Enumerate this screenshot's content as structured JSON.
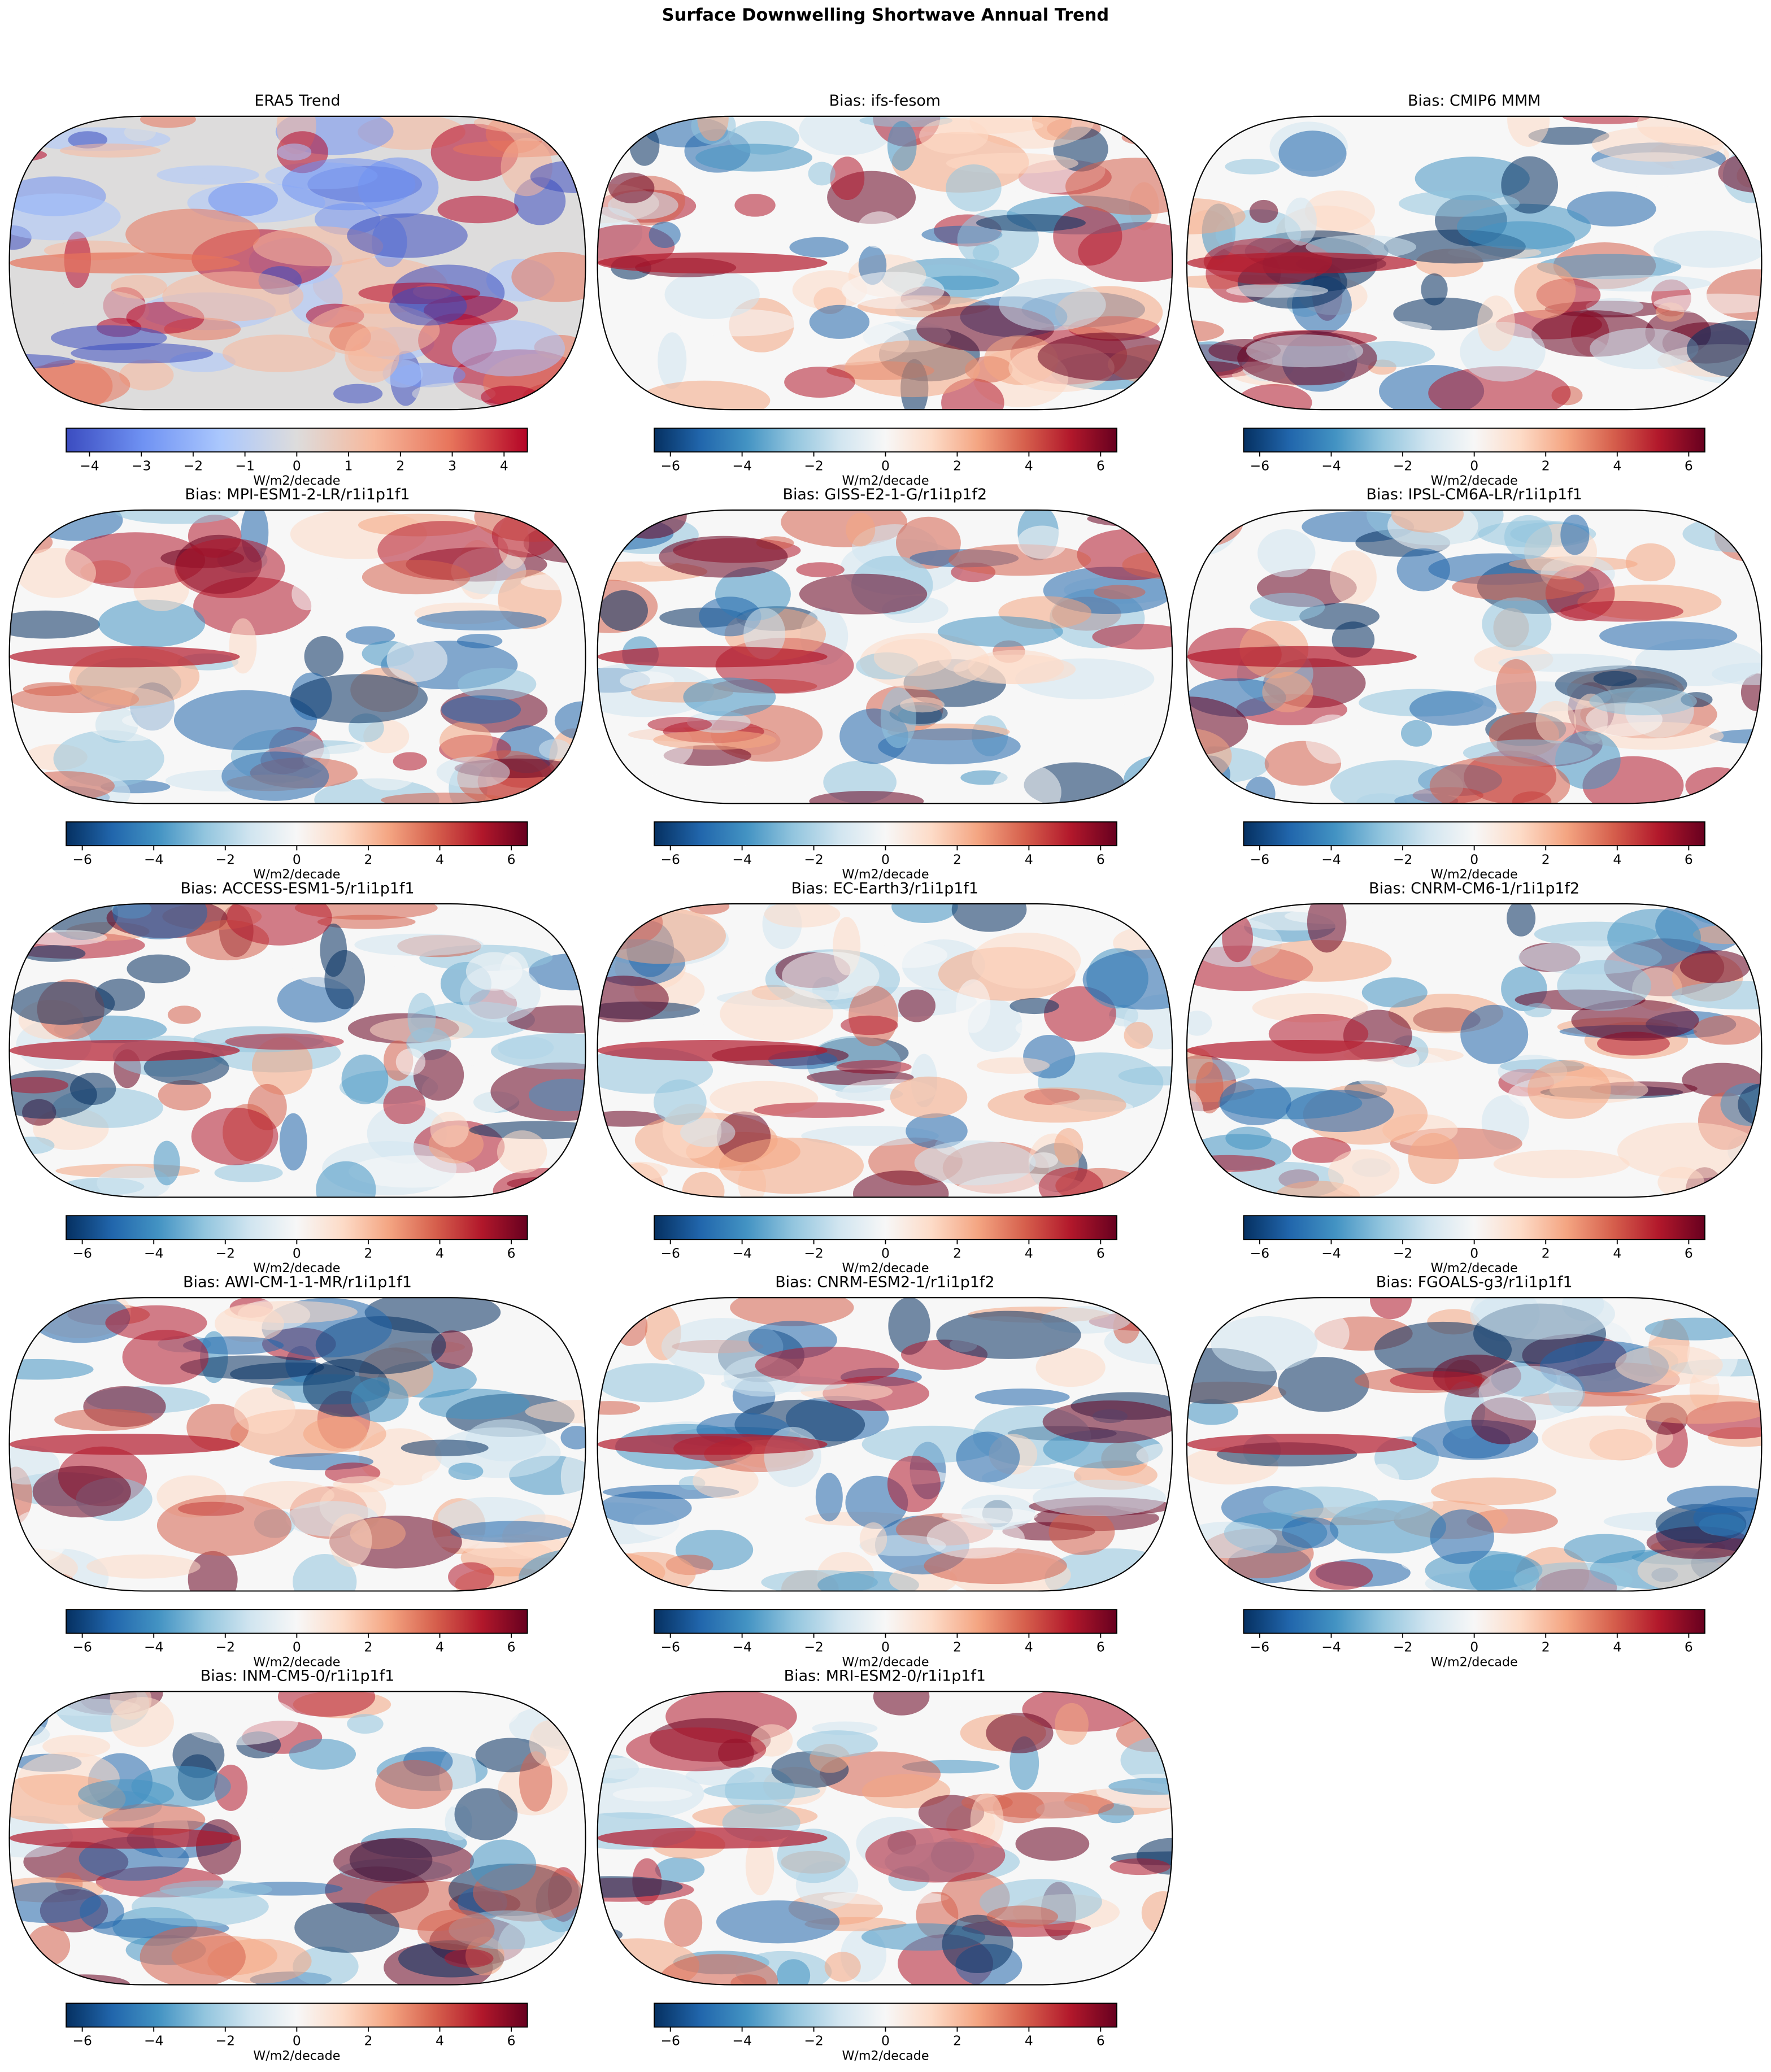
{
  "title": "Surface Downwelling Shortwave Annual Trend",
  "chart_data": [
    {
      "type": "map",
      "title": "ERA5 Trend",
      "colorbar": {
        "lim": [
          -4.45,
          4.45
        ],
        "ticks": [
          {
            "value": -4,
            "label": "−4"
          },
          {
            "value": -3,
            "label": "−3"
          },
          {
            "value": -2,
            "label": "−2"
          },
          {
            "value": -1,
            "label": "−1"
          },
          0,
          1,
          2,
          3,
          4
        ],
        "label": "W/m2/decade",
        "colors": [
          "#3b4cc0",
          "#6f92f3",
          "#aac7fd",
          "#dddcdc",
          "#f7b89c",
          "#e7745b",
          "#b40426"
        ]
      }
    },
    {
      "type": "map",
      "title": "Bias: ifs-fesom",
      "colorbar": {
        "lim": [
          -6.45,
          6.45
        ],
        "ticks": [
          {
            "value": -6,
            "label": "−6"
          },
          {
            "value": -4,
            "label": "−4"
          },
          {
            "value": -2,
            "label": "−2"
          },
          0,
          2,
          4,
          6
        ],
        "label": "W/m2/decade",
        "colors": [
          "#053061",
          "#2166ac",
          "#4393c3",
          "#92c5de",
          "#d1e5f0",
          "#f7f7f7",
          "#fddbc7",
          "#f4a582",
          "#d6604d",
          "#b2182b",
          "#67001f"
        ]
      }
    },
    {
      "type": "map",
      "title": "Bias: CMIP6 MMM",
      "colorbar": {
        "lim": [
          -6.45,
          6.45
        ],
        "ticks": [
          {
            "value": -6,
            "label": "−6"
          },
          {
            "value": -4,
            "label": "−4"
          },
          {
            "value": -2,
            "label": "−2"
          },
          0,
          2,
          4,
          6
        ],
        "label": "W/m2/decade",
        "colors": [
          "#053061",
          "#2166ac",
          "#4393c3",
          "#92c5de",
          "#d1e5f0",
          "#f7f7f7",
          "#fddbc7",
          "#f4a582",
          "#d6604d",
          "#b2182b",
          "#67001f"
        ]
      }
    },
    {
      "type": "map",
      "title": "Bias: MPI-ESM1-2-LR/r1i1p1f1",
      "colorbar": {
        "lim": [
          -6.45,
          6.45
        ],
        "ticks": [
          {
            "value": -6,
            "label": "−6"
          },
          {
            "value": -4,
            "label": "−4"
          },
          {
            "value": -2,
            "label": "−2"
          },
          0,
          2,
          4,
          6
        ],
        "label": "W/m2/decade",
        "colors": [
          "#053061",
          "#2166ac",
          "#4393c3",
          "#92c5de",
          "#d1e5f0",
          "#f7f7f7",
          "#fddbc7",
          "#f4a582",
          "#d6604d",
          "#b2182b",
          "#67001f"
        ]
      }
    },
    {
      "type": "map",
      "title": "Bias: GISS-E2-1-G/r1i1p1f2",
      "colorbar": {
        "lim": [
          -6.45,
          6.45
        ],
        "ticks": [
          {
            "value": -6,
            "label": "−6"
          },
          {
            "value": -4,
            "label": "−4"
          },
          {
            "value": -2,
            "label": "−2"
          },
          0,
          2,
          4,
          6
        ],
        "label": "W/m2/decade",
        "colors": [
          "#053061",
          "#2166ac",
          "#4393c3",
          "#92c5de",
          "#d1e5f0",
          "#f7f7f7",
          "#fddbc7",
          "#f4a582",
          "#d6604d",
          "#b2182b",
          "#67001f"
        ]
      }
    },
    {
      "type": "map",
      "title": "Bias: IPSL-CM6A-LR/r1i1p1f1",
      "colorbar": {
        "lim": [
          -6.45,
          6.45
        ],
        "ticks": [
          {
            "value": -6,
            "label": "−6"
          },
          {
            "value": -4,
            "label": "−4"
          },
          {
            "value": -2,
            "label": "−2"
          },
          0,
          2,
          4,
          6
        ],
        "label": "W/m2/decade",
        "colors": [
          "#053061",
          "#2166ac",
          "#4393c3",
          "#92c5de",
          "#d1e5f0",
          "#f7f7f7",
          "#fddbc7",
          "#f4a582",
          "#d6604d",
          "#b2182b",
          "#67001f"
        ]
      }
    },
    {
      "type": "map",
      "title": "Bias: ACCESS-ESM1-5/r1i1p1f1",
      "colorbar": {
        "lim": [
          -6.45,
          6.45
        ],
        "ticks": [
          {
            "value": -6,
            "label": "−6"
          },
          {
            "value": -4,
            "label": "−4"
          },
          {
            "value": -2,
            "label": "−2"
          },
          0,
          2,
          4,
          6
        ],
        "label": "W/m2/decade",
        "colors": [
          "#053061",
          "#2166ac",
          "#4393c3",
          "#92c5de",
          "#d1e5f0",
          "#f7f7f7",
          "#fddbc7",
          "#f4a582",
          "#d6604d",
          "#b2182b",
          "#67001f"
        ]
      }
    },
    {
      "type": "map",
      "title": "Bias: EC-Earth3/r1i1p1f1",
      "colorbar": {
        "lim": [
          -6.45,
          6.45
        ],
        "ticks": [
          {
            "value": -6,
            "label": "−6"
          },
          {
            "value": -4,
            "label": "−4"
          },
          {
            "value": -2,
            "label": "−2"
          },
          0,
          2,
          4,
          6
        ],
        "label": "W/m2/decade",
        "colors": [
          "#053061",
          "#2166ac",
          "#4393c3",
          "#92c5de",
          "#d1e5f0",
          "#f7f7f7",
          "#fddbc7",
          "#f4a582",
          "#d6604d",
          "#b2182b",
          "#67001f"
        ]
      }
    },
    {
      "type": "map",
      "title": "Bias: CNRM-CM6-1/r1i1p1f2",
      "colorbar": {
        "lim": [
          -6.45,
          6.45
        ],
        "ticks": [
          {
            "value": -6,
            "label": "−6"
          },
          {
            "value": -4,
            "label": "−4"
          },
          {
            "value": -2,
            "label": "−2"
          },
          0,
          2,
          4,
          6
        ],
        "label": "W/m2/decade",
        "colors": [
          "#053061",
          "#2166ac",
          "#4393c3",
          "#92c5de",
          "#d1e5f0",
          "#f7f7f7",
          "#fddbc7",
          "#f4a582",
          "#d6604d",
          "#b2182b",
          "#67001f"
        ]
      }
    },
    {
      "type": "map",
      "title": "Bias: AWI-CM-1-1-MR/r1i1p1f1",
      "colorbar": {
        "lim": [
          -6.45,
          6.45
        ],
        "ticks": [
          {
            "value": -6,
            "label": "−6"
          },
          {
            "value": -4,
            "label": "−4"
          },
          {
            "value": -2,
            "label": "−2"
          },
          0,
          2,
          4,
          6
        ],
        "label": "W/m2/decade",
        "colors": [
          "#053061",
          "#2166ac",
          "#4393c3",
          "#92c5de",
          "#d1e5f0",
          "#f7f7f7",
          "#fddbc7",
          "#f4a582",
          "#d6604d",
          "#b2182b",
          "#67001f"
        ]
      }
    },
    {
      "type": "map",
      "title": "Bias: CNRM-ESM2-1/r1i1p1f2",
      "colorbar": {
        "lim": [
          -6.45,
          6.45
        ],
        "ticks": [
          {
            "value": -6,
            "label": "−6"
          },
          {
            "value": -4,
            "label": "−4"
          },
          {
            "value": -2,
            "label": "−2"
          },
          0,
          2,
          4,
          6
        ],
        "label": "W/m2/decade",
        "colors": [
          "#053061",
          "#2166ac",
          "#4393c3",
          "#92c5de",
          "#d1e5f0",
          "#f7f7f7",
          "#fddbc7",
          "#f4a582",
          "#d6604d",
          "#b2182b",
          "#67001f"
        ]
      }
    },
    {
      "type": "map",
      "title": "Bias: FGOALS-g3/r1i1p1f1",
      "colorbar": {
        "lim": [
          -6.45,
          6.45
        ],
        "ticks": [
          {
            "value": -6,
            "label": "−6"
          },
          {
            "value": -4,
            "label": "−4"
          },
          {
            "value": -2,
            "label": "−2"
          },
          0,
          2,
          4,
          6
        ],
        "label": "W/m2/decade",
        "colors": [
          "#053061",
          "#2166ac",
          "#4393c3",
          "#92c5de",
          "#d1e5f0",
          "#f7f7f7",
          "#fddbc7",
          "#f4a582",
          "#d6604d",
          "#b2182b",
          "#67001f"
        ]
      }
    },
    {
      "type": "map",
      "title": "Bias: INM-CM5-0/r1i1p1f1",
      "colorbar": {
        "lim": [
          -6.45,
          6.45
        ],
        "ticks": [
          {
            "value": -6,
            "label": "−6"
          },
          {
            "value": -4,
            "label": "−4"
          },
          {
            "value": -2,
            "label": "−2"
          },
          0,
          2,
          4,
          6
        ],
        "label": "W/m2/decade",
        "colors": [
          "#053061",
          "#2166ac",
          "#4393c3",
          "#92c5de",
          "#d1e5f0",
          "#f7f7f7",
          "#fddbc7",
          "#f4a582",
          "#d6604d",
          "#b2182b",
          "#67001f"
        ]
      }
    },
    {
      "type": "map",
      "title": "Bias: MRI-ESM2-0/r1i1p1f1",
      "colorbar": {
        "lim": [
          -6.45,
          6.45
        ],
        "ticks": [
          {
            "value": -6,
            "label": "−6"
          },
          {
            "value": -4,
            "label": "−4"
          },
          {
            "value": -2,
            "label": "−2"
          },
          0,
          2,
          4,
          6
        ],
        "label": "W/m2/decade",
        "colors": [
          "#053061",
          "#2166ac",
          "#4393c3",
          "#92c5de",
          "#d1e5f0",
          "#f7f7f7",
          "#fddbc7",
          "#f4a582",
          "#d6604d",
          "#b2182b",
          "#67001f"
        ]
      }
    }
  ]
}
